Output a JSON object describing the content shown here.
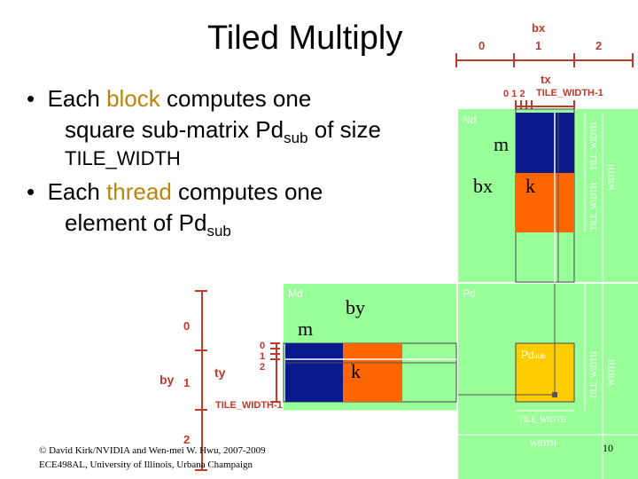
{
  "title": "Tiled Multiply",
  "bullets": [
    {
      "pre": "Each ",
      "hl": "block",
      "post": " computes one",
      "line2a": "square sub-matrix Pd",
      "line2sub": "sub",
      "line2b": " of size",
      "line3": "TILE_WIDTH"
    },
    {
      "pre": "Each ",
      "hl": "thread",
      "post": " computes one",
      "line2a": "element of Pd",
      "line2sub": "sub"
    }
  ],
  "bx_axis": {
    "label": "bx",
    "ticks": [
      "0",
      "1",
      "2"
    ]
  },
  "tx_axis": {
    "label": "tx",
    "ticks": "0 1 2",
    "last": "TILE_WIDTH-1"
  },
  "by_axis": {
    "label": "by",
    "ticks": [
      "0",
      "1",
      "2"
    ]
  },
  "ty_axis": {
    "label": "ty",
    "ticks": [
      "0",
      "1",
      "2"
    ],
    "last": "TILE_WIDTH-1"
  },
  "matrices": {
    "nd": "Nd",
    "md": "Md",
    "pd": "Pd",
    "pdsub": "Pd",
    "pdsub_sub": "sub"
  },
  "annotations": {
    "m1": "m",
    "bx": "bx",
    "k1": "k",
    "by": "by",
    "m2": "m",
    "k2": "k"
  },
  "dim_labels": {
    "tile_width": "TILE_WIDTH",
    "width": "WIDTH"
  },
  "footer": {
    "line1": "© David Kirk/NVIDIA and Wen-mei W. Hwu, 2007-2009",
    "line2": "ECE498AL, University of Illinois, Urbana Champaign",
    "page": "10"
  },
  "colors": {
    "block_blue": "#0a1a8c",
    "block_orange": "#ff6600",
    "pd_yellow": "#ffcc00",
    "matrix_green": "#99ff99",
    "bracket": "#c0392b"
  }
}
